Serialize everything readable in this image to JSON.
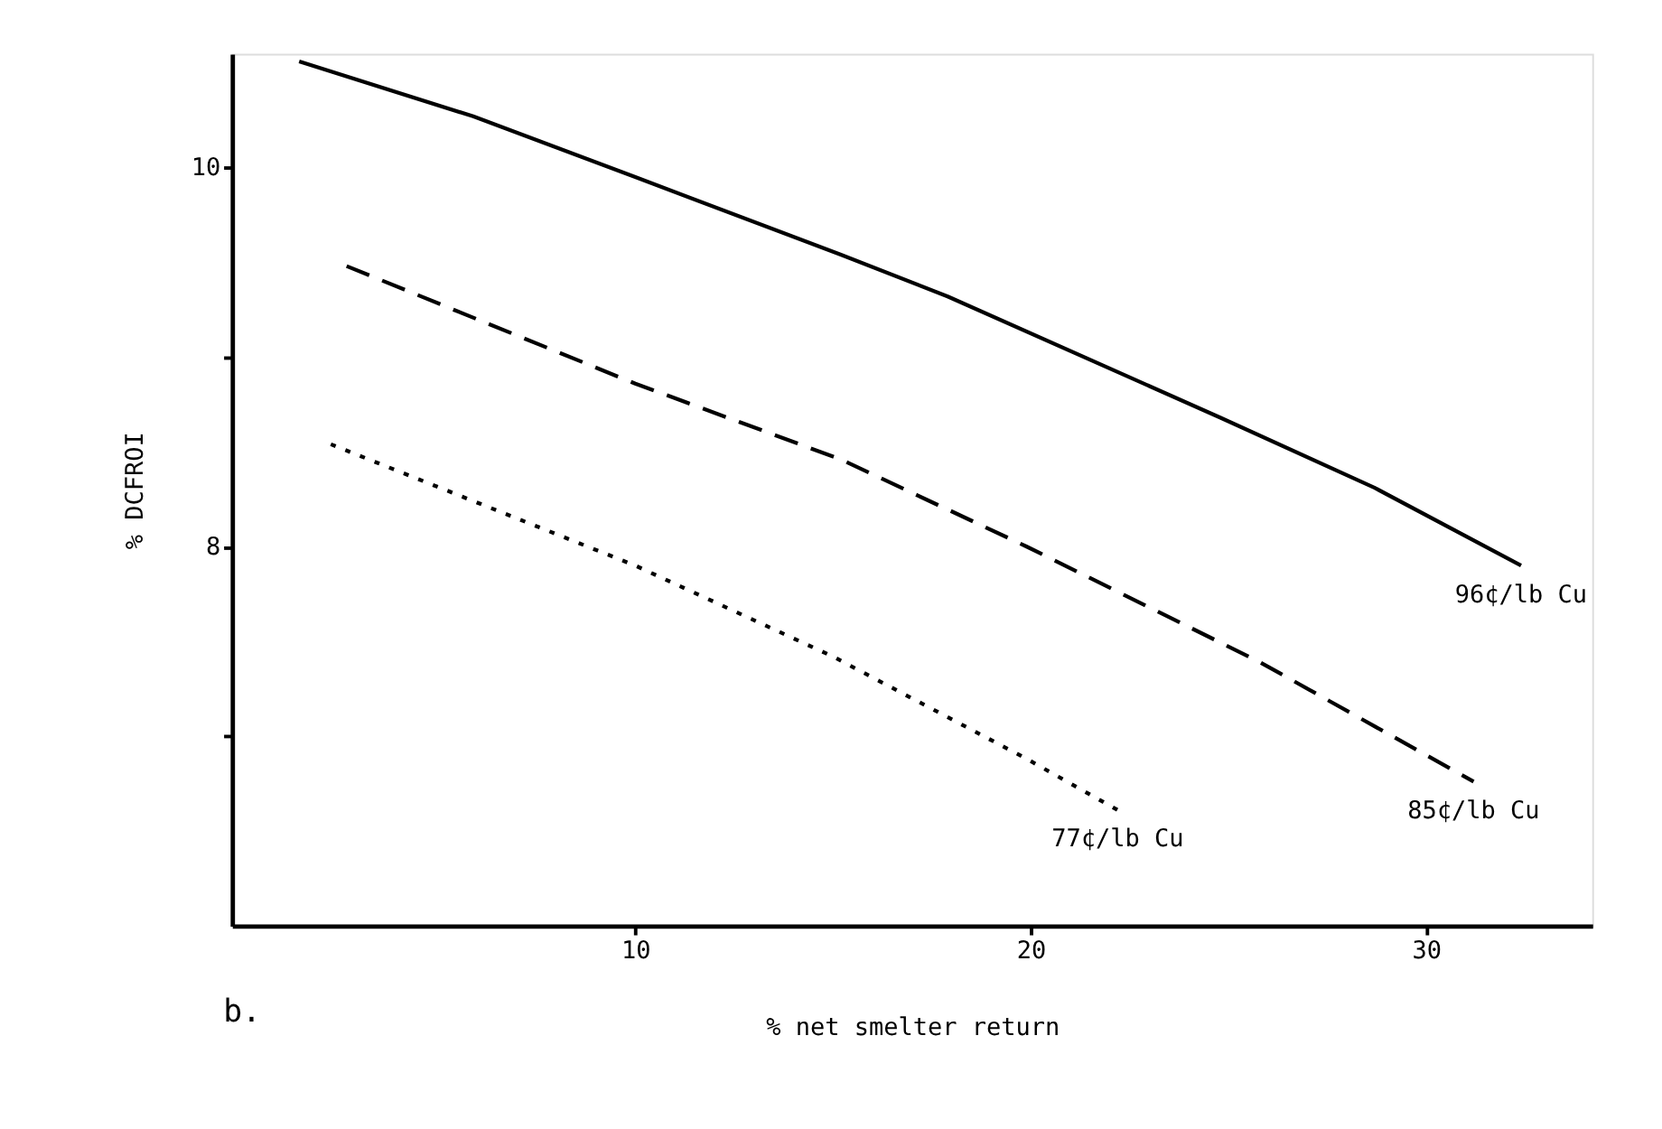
{
  "chart_data": {
    "type": "line",
    "xlabel": "% net smelter return",
    "ylabel": "% DCFROI",
    "xlim": [
      -0.2,
      34.2
    ],
    "ylim": [
      6,
      10.6
    ],
    "xticks": [
      10,
      20,
      30
    ],
    "yticks": [
      {
        "value": 7,
        "label": null
      },
      8,
      {
        "value": 9,
        "label": null
      },
      10
    ],
    "grid": false,
    "marker": "none",
    "series": [
      {
        "name": "96¢/lb Cu",
        "color": "#000000",
        "line_style": "solid",
        "x": [
          1.5,
          5.9,
          10,
          15.2,
          17.9,
          24.8,
          28.7,
          32.4
        ],
        "values": [
          10.56,
          10.27,
          9.95,
          9.54,
          9.32,
          8.68,
          8.31,
          7.9
        ]
      },
      {
        "name": "85¢/lb Cu",
        "color": "#000000",
        "line_style": "dashed",
        "x": [
          2.7,
          10,
          15.2,
          19.9,
          25.8,
          31.2
        ],
        "values": [
          9.48,
          8.86,
          8.46,
          8.0,
          7.39,
          6.76
        ]
      },
      {
        "name": "77¢/lb Cu",
        "color": "#000000",
        "line_style": "dotted",
        "x": [
          2.3,
          10,
          15,
          19.9,
          22.2
        ],
        "values": [
          8.54,
          7.9,
          7.42,
          6.88,
          6.61
        ]
      }
    ],
    "annotations": [
      "b."
    ]
  }
}
